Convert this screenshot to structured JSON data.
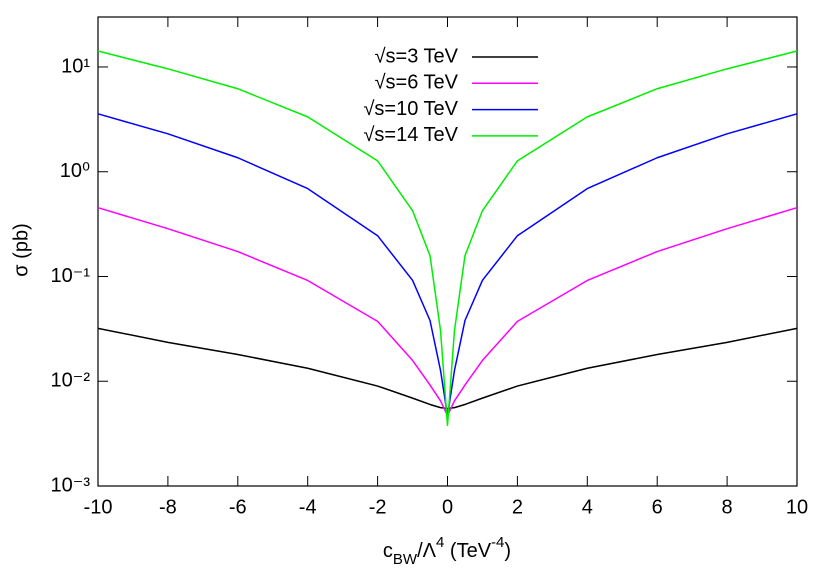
{
  "chart_data": {
    "type": "line",
    "y_label": "σ (pb)",
    "x_label": [
      {
        "text": "c"
      },
      {
        "text": "BW",
        "shift": "sub"
      },
      {
        "text": "/Λ"
      },
      {
        "text": "4",
        "shift": "super"
      },
      {
        "text": " (TeV"
      },
      {
        "text": "-4",
        "shift": "super"
      },
      {
        "text": ")"
      }
    ],
    "x": [
      -10,
      -8,
      -6,
      -4,
      -2,
      -1,
      -0.5,
      -0.2,
      0,
      0.2,
      0.5,
      1,
      2,
      4,
      6,
      8,
      10
    ],
    "series": [
      {
        "name": "√s=3 TeV",
        "color": "#000000",
        "values": [
          0.032,
          0.0235,
          0.018,
          0.0133,
          0.009,
          0.0069,
          0.006,
          0.0056,
          0.0055,
          0.0056,
          0.006,
          0.0069,
          0.009,
          0.0133,
          0.018,
          0.0235,
          0.032
        ]
      },
      {
        "name": "√s=6 TeV",
        "color": "#ff00ff",
        "values": [
          0.454,
          0.286,
          0.173,
          0.0916,
          0.0373,
          0.0158,
          0.0092,
          0.0065,
          0.0047,
          0.0065,
          0.0092,
          0.0158,
          0.0373,
          0.0916,
          0.173,
          0.286,
          0.454
        ]
      },
      {
        "name": "√s=10 TeV",
        "color": "#0000ff",
        "values": [
          3.57,
          2.3,
          1.36,
          0.69,
          0.245,
          0.092,
          0.038,
          0.0127,
          0.0047,
          0.0127,
          0.038,
          0.092,
          0.245,
          0.69,
          1.36,
          2.3,
          3.57
        ]
      },
      {
        "name": "√s=14 TeV",
        "color": "#00ee00",
        "values": [
          14.2,
          9.6,
          6.2,
          3.34,
          1.27,
          0.425,
          0.158,
          0.0306,
          0.0038,
          0.0306,
          0.158,
          0.425,
          1.27,
          3.34,
          6.2,
          9.6,
          14.2
        ]
      }
    ],
    "xlim": [
      -10,
      10
    ],
    "xticks": [
      -10,
      -8,
      -6,
      -4,
      -2,
      0,
      2,
      4,
      6,
      8,
      10
    ],
    "ylim": [
      0.001,
      30
    ],
    "yticks": [
      {
        "value": 0.001,
        "label": "10⁻³"
      },
      {
        "value": 0.01,
        "label": "10⁻²"
      },
      {
        "value": 0.1,
        "label": "10⁻¹"
      },
      {
        "value": 1,
        "label": "10⁰"
      },
      {
        "value": 10,
        "label": "10¹"
      }
    ],
    "y_log": true,
    "legend": "top"
  }
}
